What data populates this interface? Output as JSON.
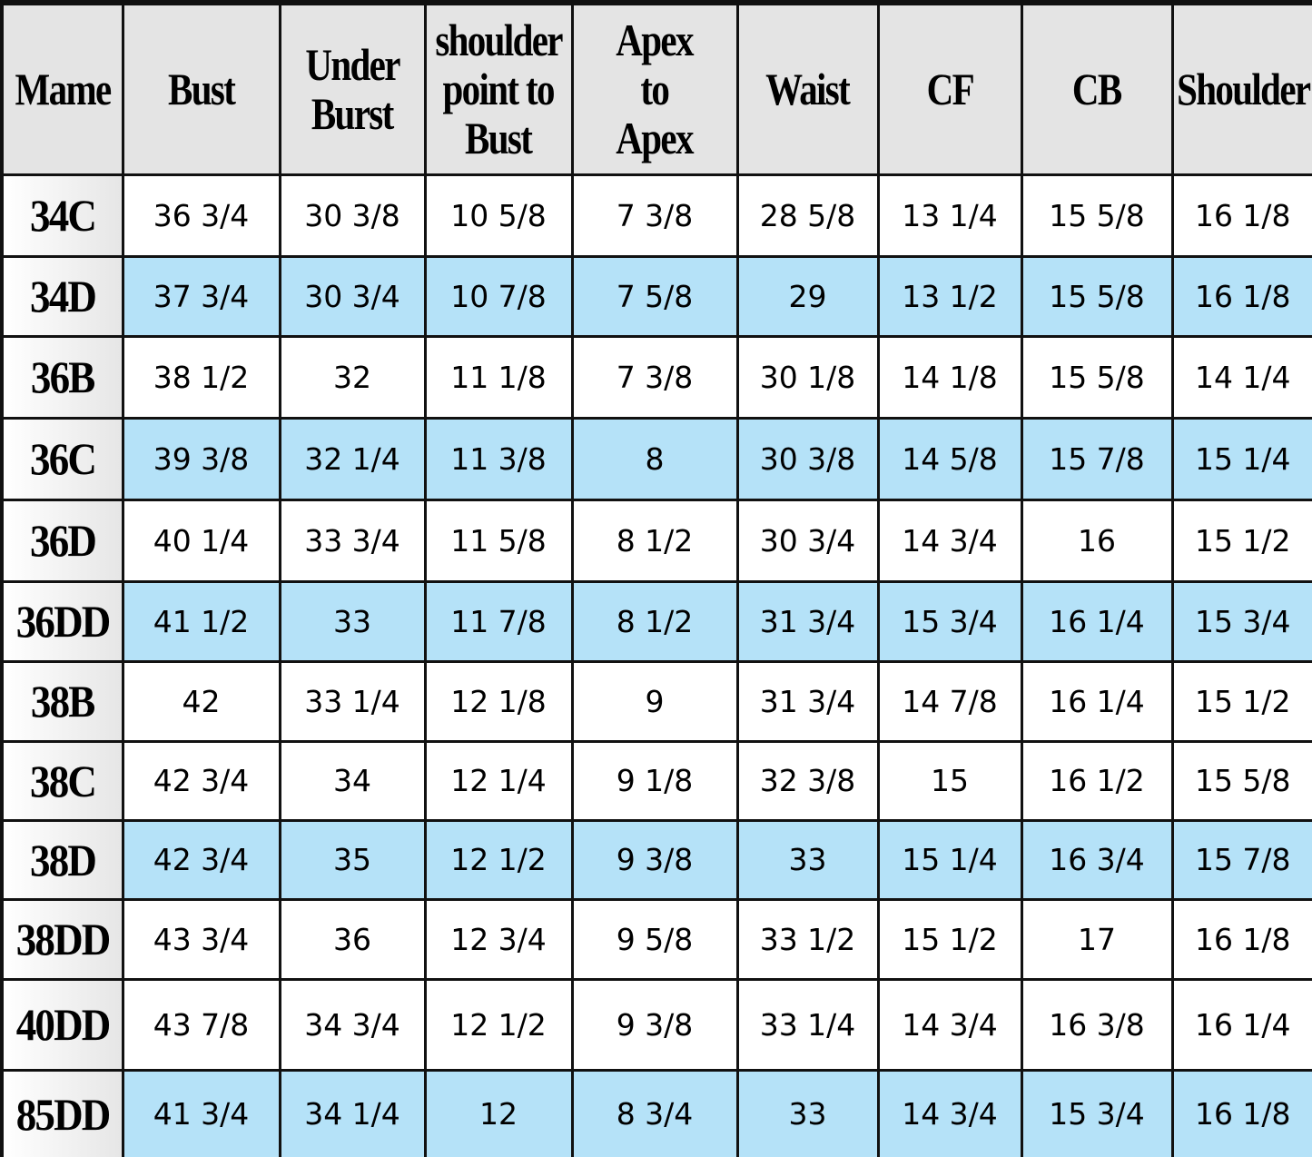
{
  "table": {
    "header": [
      [
        "Mame"
      ],
      [
        "Bust"
      ],
      [
        "Under",
        "Burst"
      ],
      [
        "shoulder",
        "point to",
        "Bust"
      ],
      [
        "Apex",
        "to",
        "Apex"
      ],
      [
        "Waist"
      ],
      [
        "CF"
      ],
      [
        "CB"
      ],
      [
        "Shoulder"
      ]
    ],
    "rows": [
      [
        "34C",
        "36 3/4",
        "30 3/8",
        "10 5/8",
        "7 3/8",
        "28 5/8",
        "13 1/4",
        "15 5/8",
        "16 1/8"
      ],
      [
        "34D",
        "37 3/4",
        "30 3/4",
        "10 7/8",
        "7 5/8",
        "29",
        "13 1/2",
        "15 5/8",
        "16 1/8"
      ],
      [
        "36B",
        "38 1/2",
        "32",
        "11 1/8",
        "7 3/8",
        "30 1/8",
        "14 1/8",
        "15 5/8",
        "14 1/4"
      ],
      [
        "36C",
        "39 3/8",
        "32 1/4",
        "11 3/8",
        "8",
        "30 3/8",
        "14 5/8",
        "15 7/8",
        "15 1/4"
      ],
      [
        "36D",
        "40 1/4",
        "33 3/4",
        "11 5/8",
        "8 1/2",
        "30 3/4",
        "14 3/4",
        "16",
        "15 1/2"
      ],
      [
        "36DD",
        "41 1/2",
        "33",
        "11 7/8",
        "8 1/2",
        "31 3/4",
        "15 3/4",
        "16 1/4",
        "15 3/4"
      ],
      [
        "38B",
        "42",
        "33 1/4",
        "12 1/8",
        "9",
        "31 3/4",
        "14 7/8",
        "16 1/4",
        "15 1/2"
      ],
      [
        "38C",
        "42 3/4",
        "34",
        "12 1/4",
        "9 1/8",
        "32 3/8",
        "15",
        "16 1/2",
        "15 5/8"
      ],
      [
        "38D",
        "42 3/4",
        "35",
        "12 1/2",
        "9 3/8",
        "33",
        "15 1/4",
        "16 3/4",
        "15 7/8"
      ],
      [
        "38DD",
        "43 3/4",
        "36",
        "12 3/4",
        "9 5/8",
        "33 1/2",
        "15 1/2",
        "17",
        "16 1/8"
      ],
      [
        "40DD",
        "43 7/8",
        "34 3/4",
        "12 1/2",
        "9 3/8",
        "33 1/4",
        "14 3/4",
        "16 3/8",
        "16 1/4"
      ],
      [
        "85DD",
        "41 3/4",
        "34 1/4",
        "12",
        "8 3/4",
        "33",
        "14 3/4",
        "15 3/4",
        "16 1/8"
      ]
    ]
  }
}
